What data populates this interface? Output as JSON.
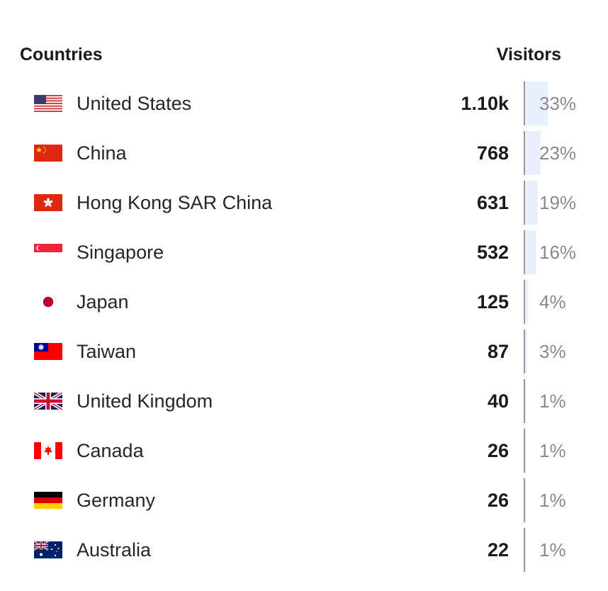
{
  "header": {
    "countries_label": "Countries",
    "visitors_label": "Visitors"
  },
  "countries": [
    {
      "name": "United States",
      "value": "1.10k",
      "percent": "33%",
      "share": 33,
      "flag": "us-flag-icon"
    },
    {
      "name": "China",
      "value": "768",
      "percent": "23%",
      "share": 23,
      "flag": "cn-flag-icon"
    },
    {
      "name": "Hong Kong SAR China",
      "value": "631",
      "percent": "19%",
      "share": 19,
      "flag": "hk-flag-icon"
    },
    {
      "name": "Singapore",
      "value": "532",
      "percent": "16%",
      "share": 16,
      "flag": "sg-flag-icon"
    },
    {
      "name": "Japan",
      "value": "125",
      "percent": "4%",
      "share": 4,
      "flag": "jp-flag-icon"
    },
    {
      "name": "Taiwan",
      "value": "87",
      "percent": "3%",
      "share": 3,
      "flag": "tw-flag-icon"
    },
    {
      "name": "United Kingdom",
      "value": "40",
      "percent": "1%",
      "share": 1,
      "flag": "gb-flag-icon"
    },
    {
      "name": "Canada",
      "value": "26",
      "percent": "1%",
      "share": 1,
      "flag": "ca-flag-icon"
    },
    {
      "name": "Germany",
      "value": "26",
      "percent": "1%",
      "share": 1,
      "flag": "de-flag-icon"
    },
    {
      "name": "Australia",
      "value": "22",
      "percent": "1%",
      "share": 1,
      "flag": "au-flag-icon"
    }
  ],
  "colors": {
    "bar": "#e8f0fd",
    "divider": "#9a9a9a",
    "percent_text": "#8a8a8a"
  }
}
